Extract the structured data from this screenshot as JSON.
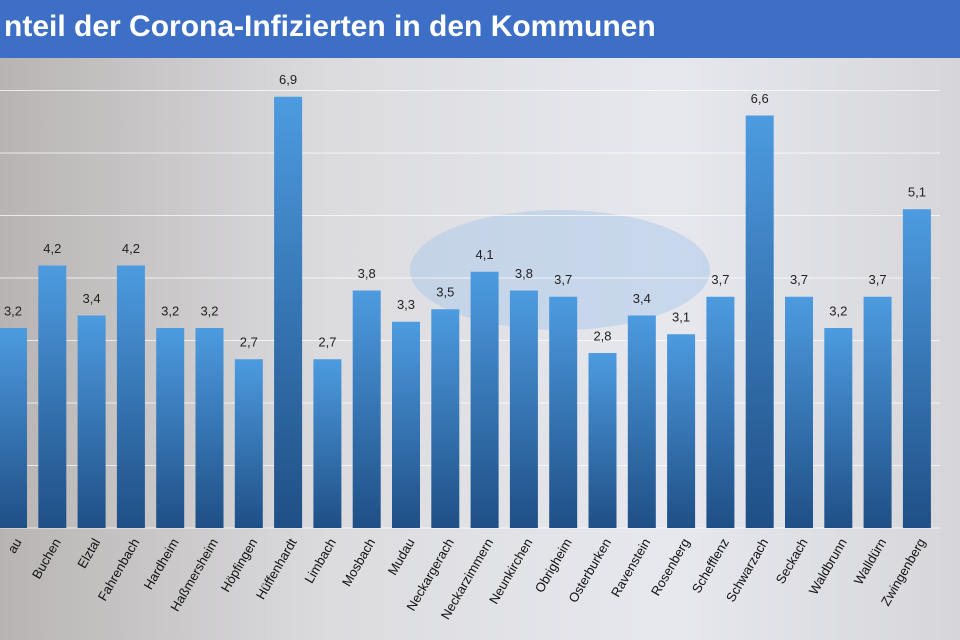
{
  "chart_data": {
    "type": "bar",
    "title": "nteil der Corona-Infizierten in den Kommunen",
    "categories": [
      "au",
      "Buchen",
      "Elztal",
      "Fahrenbach",
      "Hardheim",
      "Haßmersheim",
      "Höpfingen",
      "Hüffenhardt",
      "Limbach",
      "Mosbach",
      "Mudau",
      "Neckargerach",
      "Neckarzimmern",
      "Neunkirchen",
      "Obrigheim",
      "Osterburken",
      "Ravenstein",
      "Rosenberg",
      "Schefflenz",
      "Schwarzach",
      "Seckach",
      "Waldbrunn",
      "Walldürn",
      "Zwingenberg"
    ],
    "values": [
      3.2,
      4.2,
      3.4,
      4.2,
      3.2,
      3.2,
      2.7,
      6.9,
      2.7,
      3.8,
      3.3,
      3.5,
      4.1,
      3.8,
      3.7,
      2.8,
      3.4,
      3.1,
      3.7,
      6.6,
      3.7,
      3.2,
      3.7,
      5.1
    ],
    "value_labels": [
      "3,2",
      "4,2",
      "3,4",
      "4,2",
      "3,2",
      "3,2",
      "2,7",
      "6,9",
      "2,7",
      "3,8",
      "3,3",
      "3,5",
      "4,1",
      "3,8",
      "3,7",
      "2,8",
      "3,4",
      "3,1",
      "3,7",
      "6,6",
      "3,7",
      "3,2",
      "3,7",
      "5,1"
    ],
    "color": "#3f7fc8",
    "ylim": [
      0,
      7
    ],
    "yticks": [
      0,
      1,
      2,
      3,
      4,
      5,
      6,
      7
    ],
    "grid": true
  }
}
